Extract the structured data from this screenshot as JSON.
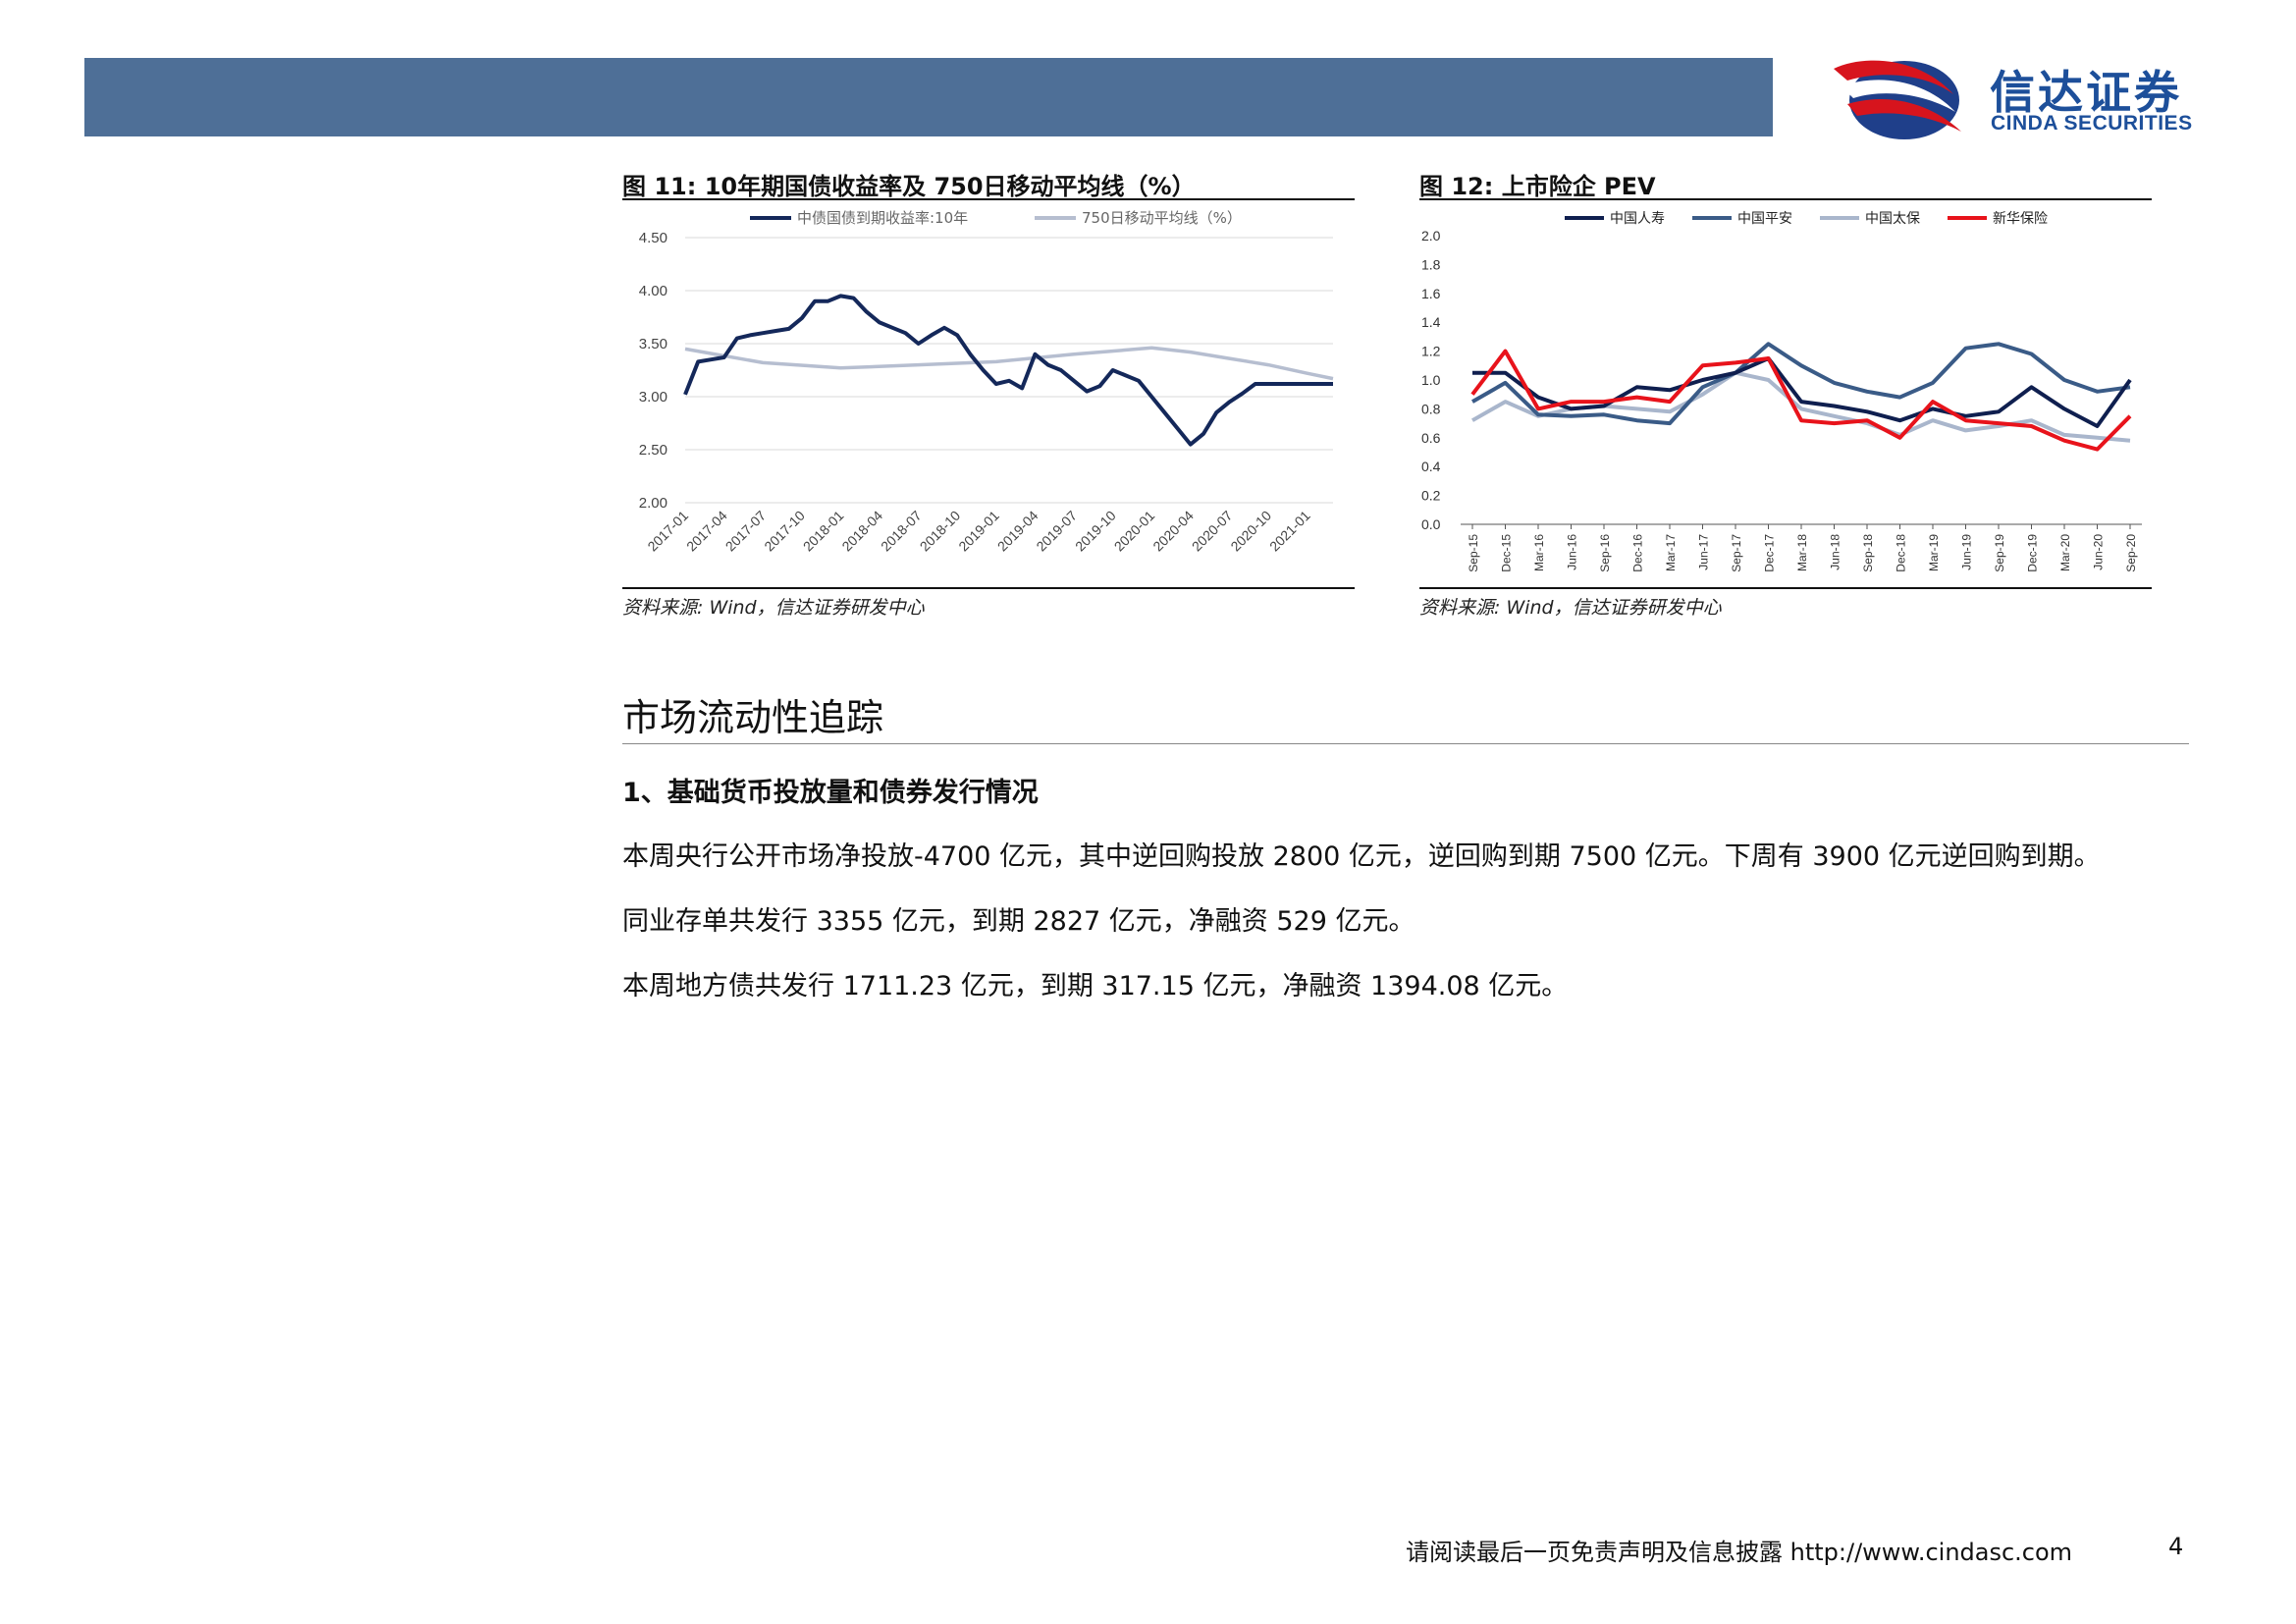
{
  "header": {
    "logo_cn": "信达证券",
    "logo_en": "CINDA SECURITIES",
    "bar_color": "#4e6f97",
    "logo_color": "#1d4f9a"
  },
  "figure11": {
    "title": "图  11:    10年期国债收益率及 750日移动平均线（%）",
    "source": "资料来源: Wind，信达证券研发中心",
    "chart_data": {
      "type": "line",
      "title": "",
      "xlabel": "",
      "ylabel": "",
      "ylim": [
        2.0,
        4.5
      ],
      "yticks": [
        "4.50",
        "4.00",
        "3.50",
        "3.00",
        "2.50",
        "2.00"
      ],
      "grid": true,
      "legend_position": "top",
      "categories": [
        "2017-01",
        "2017-04",
        "2017-07",
        "2017-10",
        "2018-01",
        "2018-04",
        "2018-07",
        "2018-10",
        "2019-01",
        "2019-04",
        "2019-07",
        "2019-10",
        "2020-01",
        "2020-04",
        "2020-07",
        "2020-10",
        "2021-01"
      ],
      "x_end": "2021-03",
      "series": [
        {
          "name": "中债国债到期收益率:10年",
          "color": "#14285a",
          "points": [
            [
              "2017-01",
              3.02
            ],
            [
              "2017-02",
              3.33
            ],
            [
              "2017-03",
              3.35
            ],
            [
              "2017-04",
              3.37
            ],
            [
              "2017-05",
              3.55
            ],
            [
              "2017-06",
              3.58
            ],
            [
              "2017-07",
              3.6
            ],
            [
              "2017-08",
              3.62
            ],
            [
              "2017-09",
              3.64
            ],
            [
              "2017-10",
              3.74
            ],
            [
              "2017-11",
              3.9
            ],
            [
              "2017-12",
              3.9
            ],
            [
              "2018-01",
              3.95
            ],
            [
              "2018-02",
              3.93
            ],
            [
              "2018-03",
              3.8
            ],
            [
              "2018-04",
              3.7
            ],
            [
              "2018-05",
              3.65
            ],
            [
              "2018-06",
              3.6
            ],
            [
              "2018-07",
              3.5
            ],
            [
              "2018-08",
              3.58
            ],
            [
              "2018-09",
              3.65
            ],
            [
              "2018-10",
              3.58
            ],
            [
              "2018-11",
              3.4
            ],
            [
              "2018-12",
              3.25
            ],
            [
              "2019-01",
              3.12
            ],
            [
              "2019-02",
              3.15
            ],
            [
              "2019-03",
              3.08
            ],
            [
              "2019-04",
              3.4
            ],
            [
              "2019-05",
              3.3
            ],
            [
              "2019-06",
              3.25
            ],
            [
              "2019-07",
              3.15
            ],
            [
              "2019-08",
              3.05
            ],
            [
              "2019-09",
              3.1
            ],
            [
              "2019-10",
              3.25
            ],
            [
              "2019-11",
              3.2
            ],
            [
              "2019-12",
              3.15
            ],
            [
              "2020-01",
              3.0
            ],
            [
              "2020-02",
              2.85
            ],
            [
              "2020-03",
              2.7
            ],
            [
              "2020-04",
              2.55
            ],
            [
              "2020-05",
              2.65
            ],
            [
              "2020-06",
              2.85
            ],
            [
              "2020-07",
              2.95
            ],
            [
              "2020-08",
              3.03
            ],
            [
              "2020-09",
              3.12
            ],
            [
              "2020-10",
              3.12
            ],
            [
              "2020-11",
              3.12
            ],
            [
              "2020-12",
              3.12
            ],
            [
              "2021-01",
              3.12
            ],
            [
              "2021-02",
              3.12
            ],
            [
              "2021-03",
              3.12
            ]
          ]
        },
        {
          "name": "750日移动平均线（%）",
          "color": "#b6bed0",
          "points": [
            [
              "2017-01",
              3.45
            ],
            [
              "2017-07",
              3.32
            ],
            [
              "2018-01",
              3.27
            ],
            [
              "2018-07",
              3.3
            ],
            [
              "2019-01",
              3.33
            ],
            [
              "2019-07",
              3.4
            ],
            [
              "2020-01",
              3.46
            ],
            [
              "2020-04",
              3.42
            ],
            [
              "2020-07",
              3.36
            ],
            [
              "2020-10",
              3.3
            ],
            [
              "2021-01",
              3.22
            ],
            [
              "2021-03",
              3.17
            ]
          ]
        }
      ]
    }
  },
  "figure12": {
    "title": "图  12:    上市险企 PEV",
    "source": "资料来源: Wind，信达证券研发中心",
    "chart_data": {
      "type": "line",
      "title": "",
      "xlabel": "",
      "ylabel": "",
      "ylim": [
        0.0,
        2.0
      ],
      "yticks": [
        "2.0",
        "1.8",
        "1.6",
        "1.4",
        "1.2",
        "1.0",
        "0.8",
        "0.6",
        "0.4",
        "0.2",
        "0.0"
      ],
      "grid": false,
      "legend_position": "top",
      "categories": [
        "Sep-15",
        "Dec-15",
        "Mar-16",
        "Jun-16",
        "Sep-16",
        "Dec-16",
        "Mar-17",
        "Jun-17",
        "Sep-17",
        "Dec-17",
        "Mar-18",
        "Jun-18",
        "Sep-18",
        "Dec-18",
        "Mar-19",
        "Jun-19",
        "Sep-19",
        "Dec-19",
        "Mar-20",
        "Jun-20",
        "Sep-20"
      ],
      "series": [
        {
          "name": "中国人寿",
          "color": "#0f1f4f",
          "values": [
            1.05,
            1.05,
            0.88,
            0.8,
            0.82,
            0.95,
            0.93,
            1.0,
            1.05,
            1.15,
            0.85,
            0.82,
            0.78,
            0.72,
            0.8,
            0.75,
            0.78,
            0.95,
            0.8,
            0.68,
            1.0
          ]
        },
        {
          "name": "中国平安",
          "color": "#3a5b87",
          "values": [
            0.85,
            0.98,
            0.76,
            0.75,
            0.76,
            0.72,
            0.7,
            0.95,
            1.05,
            1.25,
            1.1,
            0.98,
            0.92,
            0.88,
            0.98,
            1.22,
            1.25,
            1.18,
            1.0,
            0.92,
            0.95
          ]
        },
        {
          "name": "中国太保",
          "color": "#a9b6cc",
          "values": [
            0.72,
            0.85,
            0.75,
            0.8,
            0.82,
            0.8,
            0.78,
            0.9,
            1.05,
            1.0,
            0.8,
            0.75,
            0.7,
            0.62,
            0.72,
            0.65,
            0.68,
            0.72,
            0.62,
            0.6,
            0.58
          ]
        },
        {
          "name": "新华保险",
          "color": "#e8131b",
          "values": [
            0.9,
            1.2,
            0.8,
            0.85,
            0.85,
            0.88,
            0.85,
            1.1,
            1.12,
            1.15,
            0.72,
            0.7,
            0.72,
            0.6,
            0.85,
            0.72,
            0.7,
            0.68,
            0.58,
            0.52,
            0.75
          ]
        }
      ]
    }
  },
  "section": {
    "title": "市场流动性追踪",
    "subheading": "1、基础货币投放量和债券发行情况",
    "paragraphs": [
      "本周央行公开市场净投放-4700 亿元，其中逆回购投放 2800 亿元，逆回购到期 7500 亿元。下周有 3900 亿元逆回购到期。",
      "同业存单共发行 3355 亿元，到期 2827 亿元，净融资 529 亿元。",
      "本周地方债共发行 1711.23 亿元，到期 317.15 亿元，净融资 1394.08 亿元。"
    ]
  },
  "footer": {
    "disclaimer": "请阅读最后一页免责声明及信息披露 http://www.cindasc.com",
    "page_number": "4"
  }
}
